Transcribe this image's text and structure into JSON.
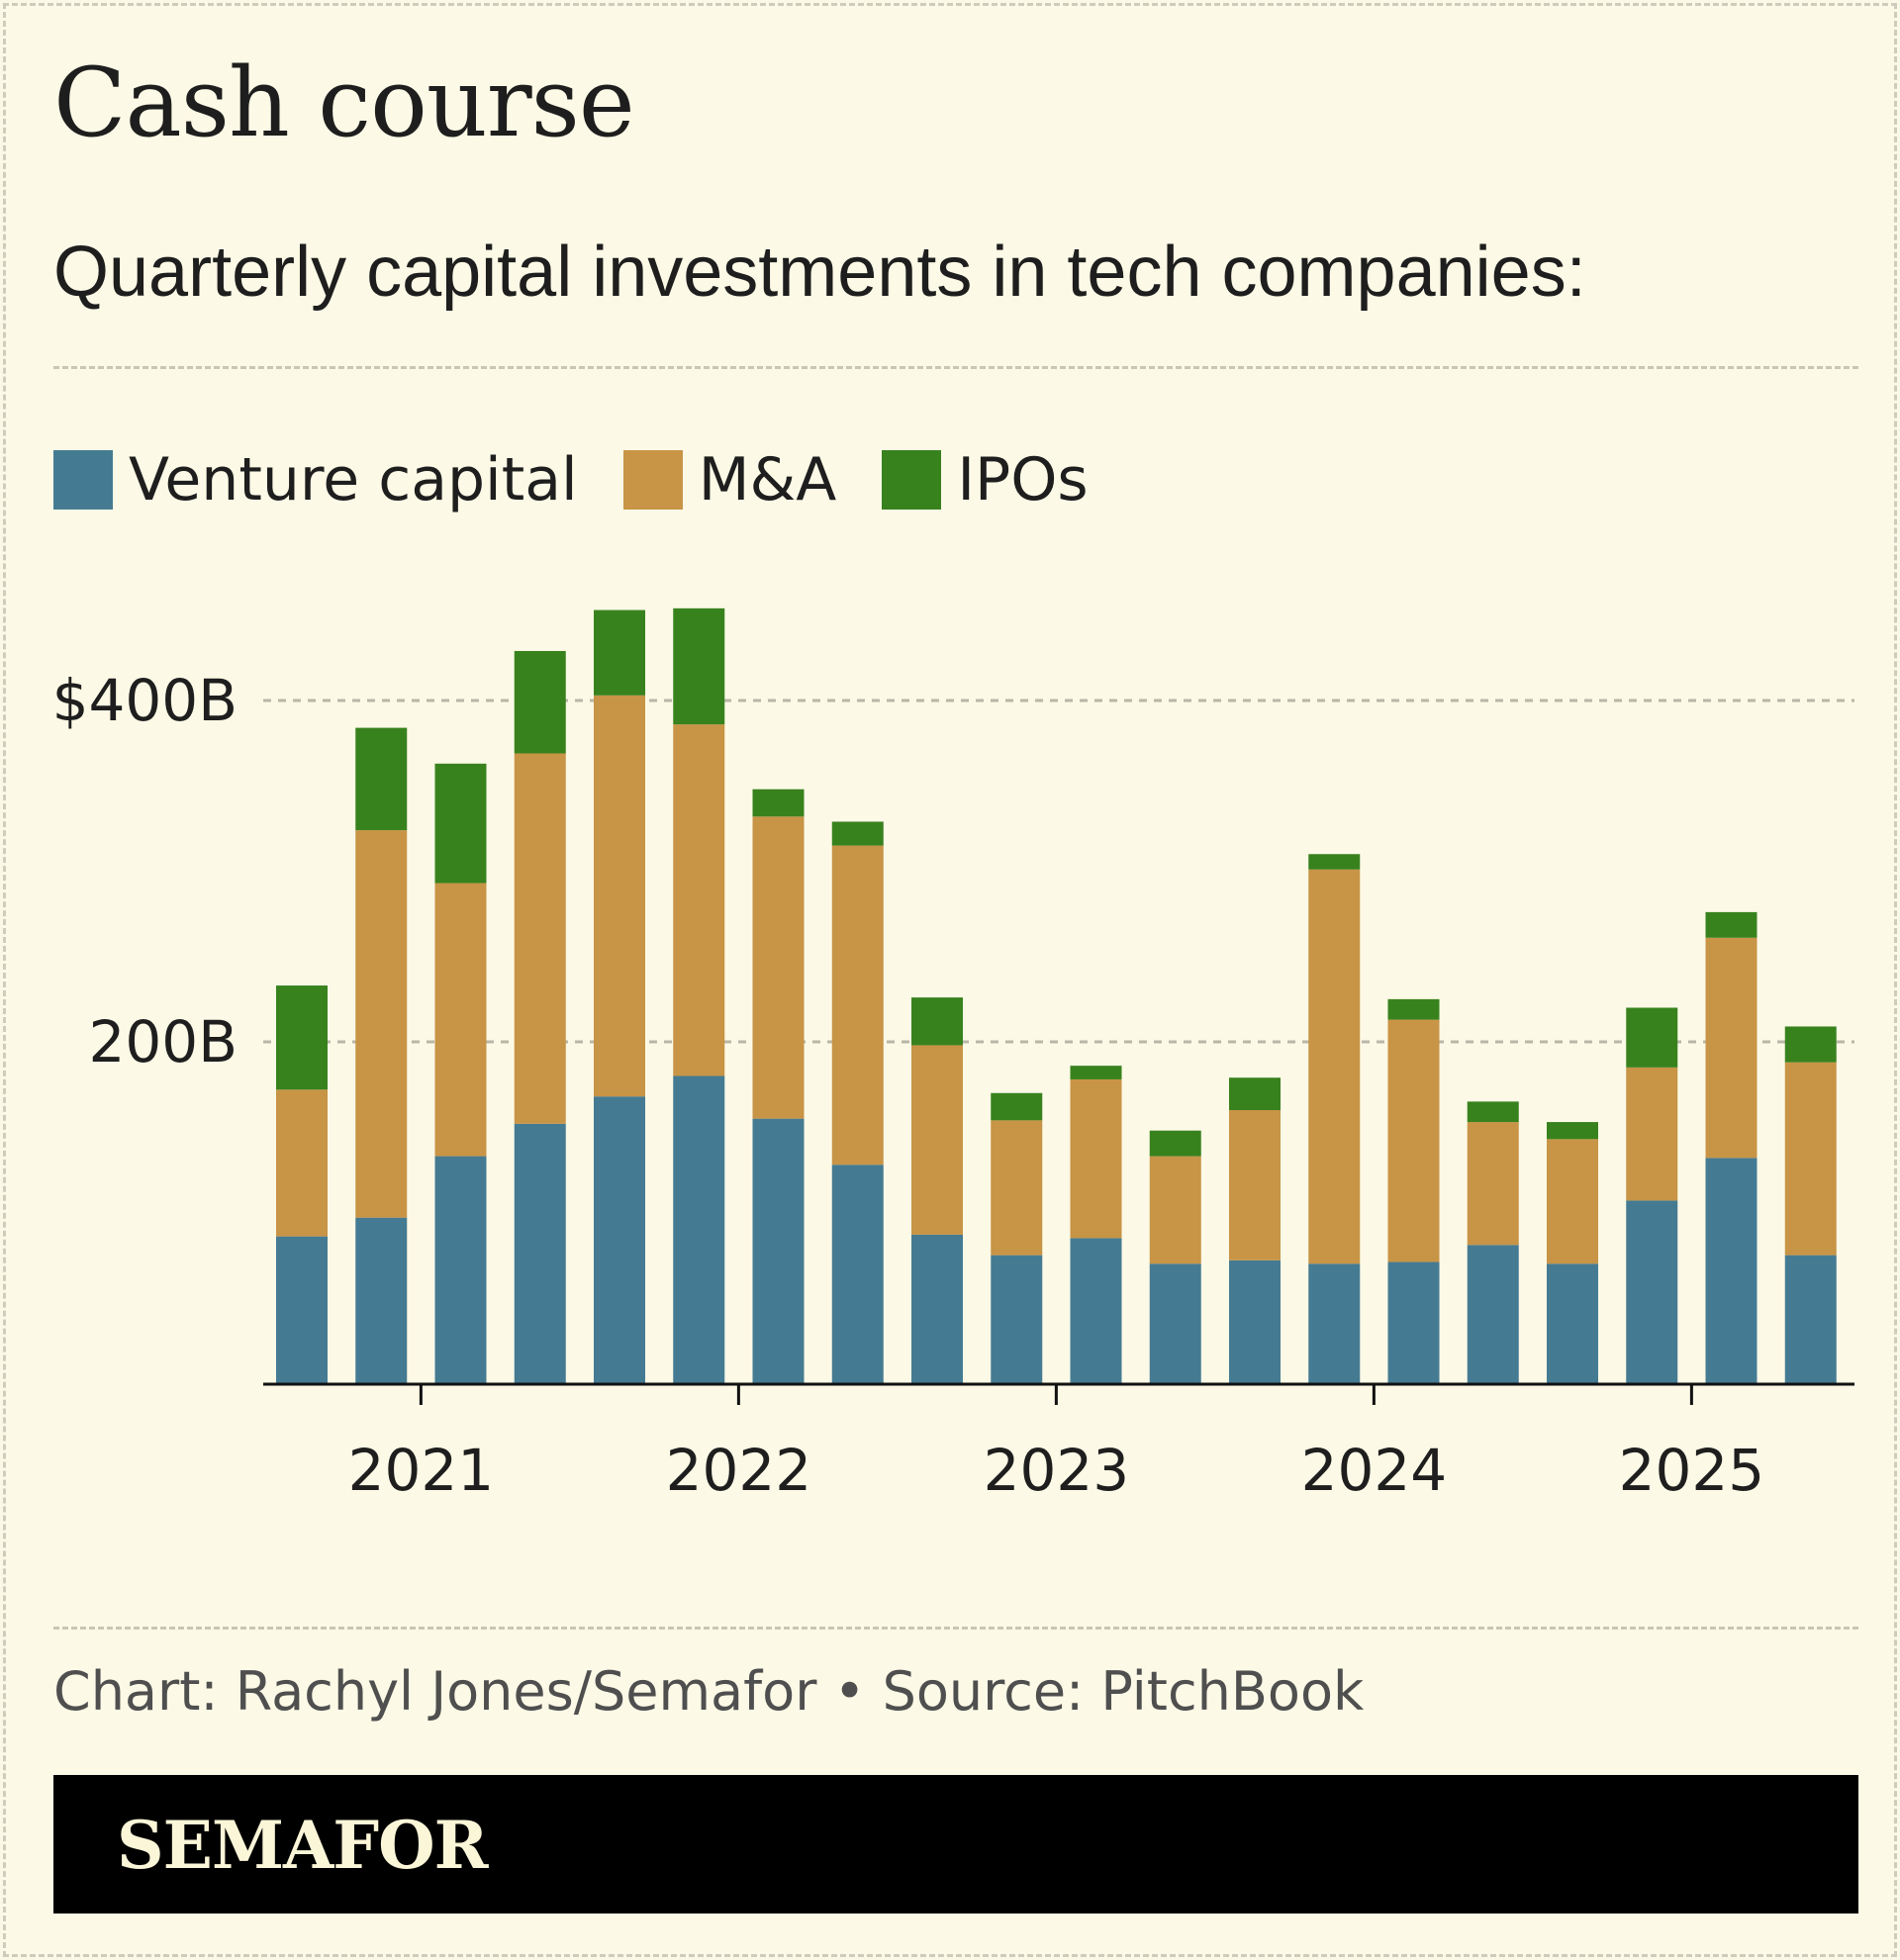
{
  "header": {
    "title": "Cash course",
    "subtitle": "Quarterly capital investments in tech companies:"
  },
  "legend": [
    {
      "label": "Venture capital",
      "color": "#457b92"
    },
    {
      "label": "M&A",
      "color": "#c89446"
    },
    {
      "label": "IPOs",
      "color": "#38821e"
    }
  ],
  "chart_data": {
    "type": "bar",
    "stacked": true,
    "x": [
      "2020 Q3",
      "2020 Q4",
      "2021 Q1",
      "2021 Q2",
      "2021 Q3",
      "2021 Q4",
      "2022 Q1",
      "2022 Q2",
      "2022 Q3",
      "2022 Q4",
      "2023 Q1",
      "2023 Q2",
      "2023 Q3",
      "2023 Q4",
      "2024 Q1",
      "2024 Q2",
      "2024 Q3",
      "2024 Q4",
      "2025 Q1",
      "2025 Q2"
    ],
    "series": [
      {
        "name": "Venture capital",
        "color": "#457b92",
        "values": [
          86,
          97,
          133,
          152,
          168,
          180,
          155,
          128,
          87,
          75,
          85,
          70,
          72,
          70,
          71,
          81,
          70,
          107,
          132,
          75
        ]
      },
      {
        "name": "M&A",
        "color": "#c89446",
        "values": [
          86,
          227,
          160,
          217,
          235,
          206,
          177,
          187,
          111,
          79,
          93,
          63,
          88,
          231,
          142,
          72,
          73,
          78,
          129,
          113
        ]
      },
      {
        "name": "IPOs",
        "color": "#38821e",
        "values": [
          61,
          60,
          70,
          60,
          50,
          68,
          16,
          14,
          28,
          16,
          8,
          15,
          19,
          9,
          12,
          12,
          10,
          35,
          15,
          21
        ]
      }
    ],
    "ytick_labels": [
      "200B",
      "$400B"
    ],
    "ytick_values": [
      200,
      400
    ],
    "xtick_labels": [
      "2021",
      "2022",
      "2023",
      "2024",
      "2025"
    ],
    "ylim": [
      0,
      470
    ],
    "grid": "horizontal dashed",
    "legend_position": "top-left"
  },
  "footer": {
    "credit": "Chart: Rachyl Jones/Semafor • Source: PitchBook",
    "brand": "SEMAFOR"
  }
}
